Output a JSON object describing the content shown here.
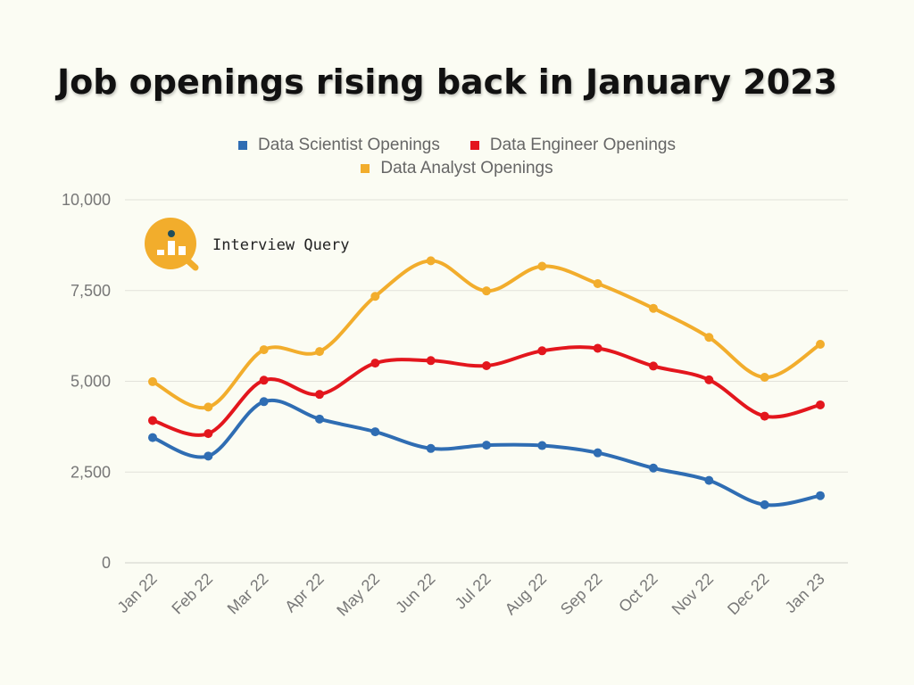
{
  "chart_data": {
    "type": "line",
    "title": "Job openings rising back in January 2023",
    "categories": [
      "Jan 22",
      "Feb 22",
      "Mar 22",
      "Apr 22",
      "May 22",
      "Jun 22",
      "Jul 22",
      "Aug 22",
      "Sep 22",
      "Oct 22",
      "Nov 22",
      "Dec 22",
      "Jan 23"
    ],
    "series": [
      {
        "name": "Data Scientist Openings",
        "color": "#2f6db3",
        "values": [
          3450,
          2940,
          4440,
          3960,
          3610,
          3150,
          3240,
          3230,
          3030,
          2610,
          2270,
          1600,
          1850
        ]
      },
      {
        "name": "Data Engineer Openings",
        "color": "#e3161d",
        "values": [
          3920,
          3560,
          5030,
          4640,
          5500,
          5570,
          5430,
          5840,
          5910,
          5420,
          5040,
          4040,
          4350
        ]
      },
      {
        "name": "Data Analyst Openings",
        "color": "#f2ad2c",
        "values": [
          4990,
          4290,
          5870,
          5820,
          7340,
          8320,
          7490,
          8170,
          7690,
          7010,
          6210,
          5110,
          6020
        ]
      }
    ],
    "yticks": [
      0,
      2500,
      5000,
      7500,
      10000
    ],
    "ytick_labels": [
      "0",
      "2,500",
      "5,000",
      "7,500",
      "10,000"
    ],
    "ylim": [
      0,
      10000
    ],
    "xlabel": "",
    "ylabel": "",
    "legend": "top-center",
    "grid": true
  },
  "branding": {
    "name": "Interview Query",
    "logo_icon": "interview-query-logo-icon",
    "logo_color": "#f2ad2c"
  }
}
